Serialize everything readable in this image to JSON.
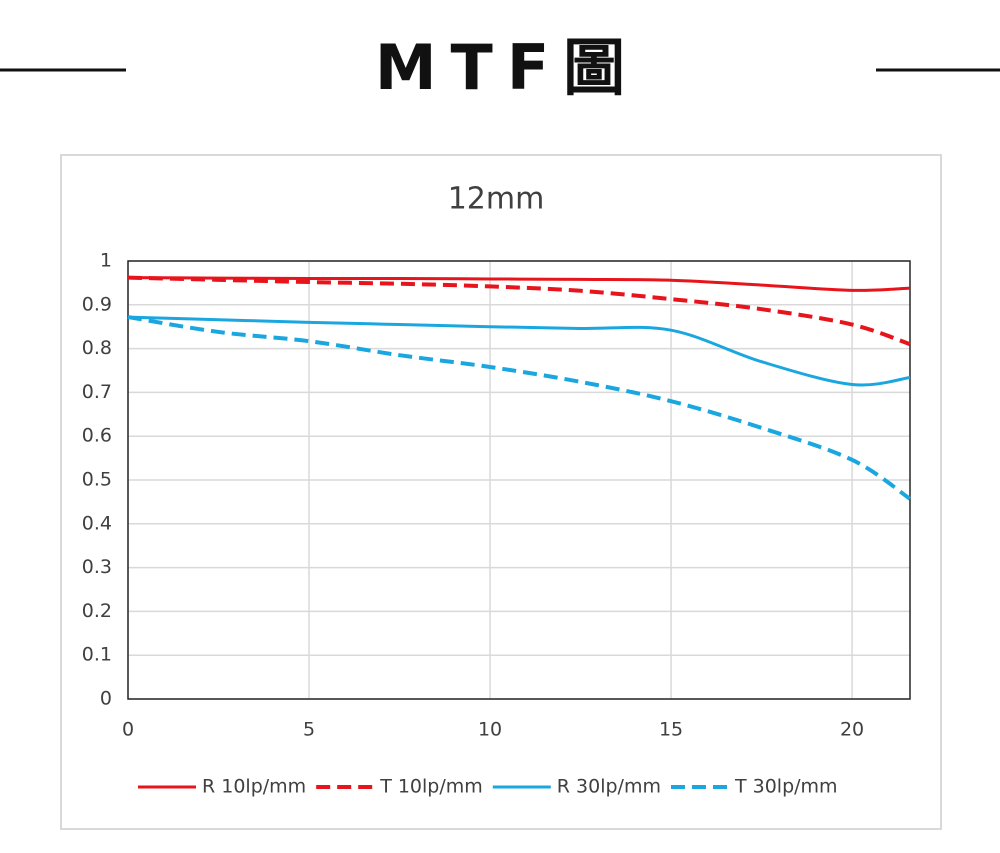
{
  "heading": "MTF圖",
  "chart_data": {
    "type": "line",
    "title": "12mm",
    "x": [
      0,
      2.5,
      5,
      7.5,
      10,
      12.5,
      15,
      17.5,
      20,
      21.6
    ],
    "series": [
      {
        "name": "R 10lp/mm",
        "color": "#e8141b",
        "dashed": false,
        "values": [
          0.962,
          0.961,
          0.96,
          0.96,
          0.959,
          0.958,
          0.956,
          0.945,
          0.933,
          0.938
        ]
      },
      {
        "name": "T 10lp/mm",
        "color": "#e8141b",
        "dashed": true,
        "values": [
          0.962,
          0.957,
          0.952,
          0.948,
          0.942,
          0.932,
          0.913,
          0.89,
          0.855,
          0.81
        ]
      },
      {
        "name": "R 30lp/mm",
        "color": "#1aa7e0",
        "dashed": false,
        "values": [
          0.872,
          0.866,
          0.86,
          0.855,
          0.85,
          0.846,
          0.842,
          0.77,
          0.718,
          0.734
        ]
      },
      {
        "name": "T 30lp/mm",
        "color": "#1aa7e0",
        "dashed": true,
        "values": [
          0.872,
          0.838,
          0.817,
          0.785,
          0.758,
          0.724,
          0.68,
          0.619,
          0.546,
          0.457
        ]
      }
    ],
    "xlim": [
      0,
      21.6
    ],
    "xticks": [
      0,
      5,
      10,
      15,
      20
    ],
    "ylim": [
      0,
      1
    ],
    "yticks": [
      0,
      0.1,
      0.2,
      0.3,
      0.4,
      0.5,
      0.6,
      0.7,
      0.8,
      0.9,
      1
    ],
    "grid": true,
    "legend": "bottom"
  }
}
